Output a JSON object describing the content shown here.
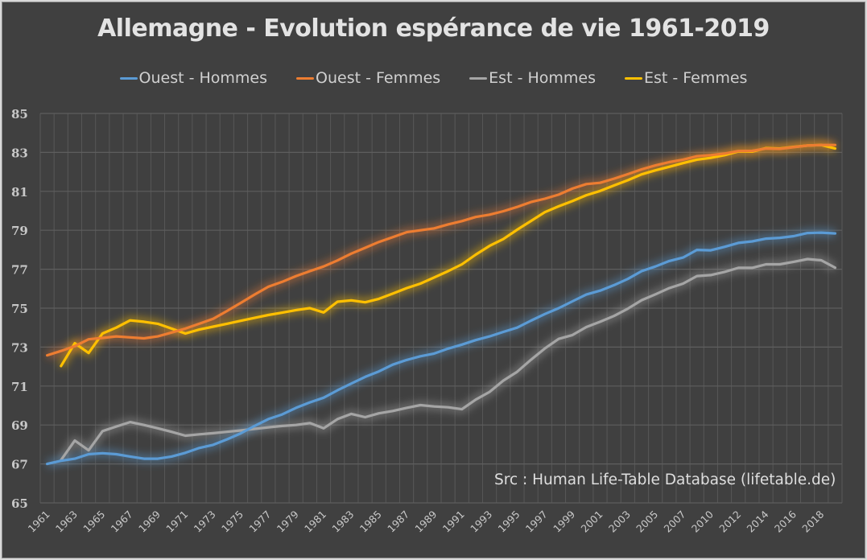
{
  "chart_data": {
    "type": "line",
    "title": "Allemagne - Evolution espérance de vie 1961-2019",
    "xlabel": "",
    "ylabel": "",
    "ylim": [
      65,
      85
    ],
    "yticks": [
      65,
      67,
      69,
      71,
      73,
      75,
      77,
      79,
      81,
      83,
      85
    ],
    "grid": true,
    "legend_position": "top",
    "source": "Src : Human Life-Table Database (lifetable.de)",
    "categories": [
      "1961",
      "1962",
      "1963",
      "1964",
      "1965",
      "1966",
      "1967",
      "1968",
      "1969",
      "1970",
      "1971",
      "1972",
      "1973",
      "1974",
      "1975",
      "1976",
      "1977",
      "1978",
      "1979",
      "1980",
      "1981",
      "1982",
      "1983",
      "1984",
      "1985",
      "1986",
      "1987",
      "1988",
      "1989",
      "1990",
      "1991",
      "1992",
      "1993",
      "1994",
      "1995",
      "1996",
      "1997",
      "1998",
      "1999",
      "2000",
      "2001",
      "2002",
      "2003",
      "2004",
      "2005",
      "2006",
      "2007",
      "2008",
      "2010",
      "2011",
      "2012",
      "2013",
      "2014",
      "2015",
      "2016",
      "2017",
      "2018",
      "2019"
    ],
    "xtick_labels": [
      "1961",
      "1963",
      "1965",
      "1967",
      "1969",
      "1971",
      "1973",
      "1975",
      "1977",
      "1979",
      "1981",
      "1983",
      "1985",
      "1987",
      "1989",
      "1991",
      "1993",
      "1995",
      "1997",
      "1999",
      "2001",
      "2003",
      "2005",
      "2007",
      "2010",
      "2012",
      "2014",
      "2016",
      "2018"
    ],
    "series": [
      {
        "name": "Ouest - Hommes",
        "color": "#5b9bd5",
        "values": [
          67.0,
          67.16,
          67.27,
          67.5,
          67.55,
          67.5,
          67.38,
          67.27,
          67.27,
          67.38,
          67.57,
          67.82,
          67.98,
          68.26,
          68.57,
          68.95,
          69.3,
          69.54,
          69.88,
          70.16,
          70.4,
          70.78,
          71.13,
          71.47,
          71.75,
          72.1,
          72.34,
          72.53,
          72.67,
          72.92,
          73.13,
          73.36,
          73.55,
          73.78,
          74.0,
          74.36,
          74.7,
          75.0,
          75.35,
          75.7,
          75.9,
          76.18,
          76.5,
          76.9,
          77.14,
          77.42,
          77.6,
          77.99,
          77.97,
          78.15,
          78.35,
          78.43,
          78.57,
          78.61,
          78.7,
          78.86,
          78.88,
          78.84
        ]
      },
      {
        "name": "Ouest - Femmes",
        "color": "#ed7d31",
        "values": [
          72.58,
          72.8,
          73.05,
          73.4,
          73.47,
          73.55,
          73.5,
          73.45,
          73.55,
          73.75,
          73.95,
          74.2,
          74.45,
          74.85,
          75.27,
          75.7,
          76.1,
          76.35,
          76.65,
          76.9,
          77.14,
          77.45,
          77.8,
          78.1,
          78.4,
          78.65,
          78.9,
          79.0,
          79.1,
          79.3,
          79.47,
          79.68,
          79.8,
          79.98,
          80.2,
          80.45,
          80.62,
          80.83,
          81.14,
          81.37,
          81.44,
          81.65,
          81.88,
          82.13,
          82.33,
          82.5,
          82.63,
          82.8,
          82.86,
          82.94,
          83.07,
          83.08,
          83.2,
          83.18,
          83.27,
          83.35,
          83.38,
          83.38
        ]
      },
      {
        "name": "Est - Hommes",
        "color": "#a5a5a5",
        "values": [
          null,
          67.2,
          68.2,
          67.7,
          68.68,
          68.92,
          69.15,
          69.0,
          68.83,
          68.65,
          68.45,
          68.52,
          68.58,
          68.65,
          68.72,
          68.8,
          68.88,
          68.95,
          69.0,
          69.1,
          68.83,
          69.3,
          69.57,
          69.4,
          69.6,
          69.72,
          69.88,
          70.02,
          69.95,
          69.91,
          69.81,
          70.3,
          70.7,
          71.28,
          71.73,
          72.35,
          72.93,
          73.42,
          73.62,
          74.03,
          74.3,
          74.6,
          74.97,
          75.41,
          75.71,
          76.03,
          76.26,
          76.65,
          76.7,
          76.86,
          77.07,
          77.07,
          77.25,
          77.25,
          77.38,
          77.52,
          77.46,
          77.08
        ]
      },
      {
        "name": "Est - Femmes",
        "color": "#ffc000",
        "values": [
          null,
          72.03,
          73.2,
          72.7,
          73.7,
          74.0,
          74.37,
          74.3,
          74.2,
          73.95,
          73.7,
          73.9,
          74.05,
          74.2,
          74.35,
          74.5,
          74.65,
          74.77,
          74.9,
          75.0,
          74.78,
          75.33,
          75.4,
          75.3,
          75.48,
          75.75,
          76.03,
          76.26,
          76.58,
          76.9,
          77.25,
          77.75,
          78.2,
          78.55,
          79.03,
          79.48,
          79.93,
          80.23,
          80.5,
          80.8,
          81.02,
          81.3,
          81.57,
          81.87,
          82.08,
          82.26,
          82.45,
          82.63,
          82.72,
          82.86,
          83.05,
          83.04,
          83.22,
          83.2,
          83.28,
          83.35,
          83.38,
          83.2
        ]
      }
    ]
  }
}
